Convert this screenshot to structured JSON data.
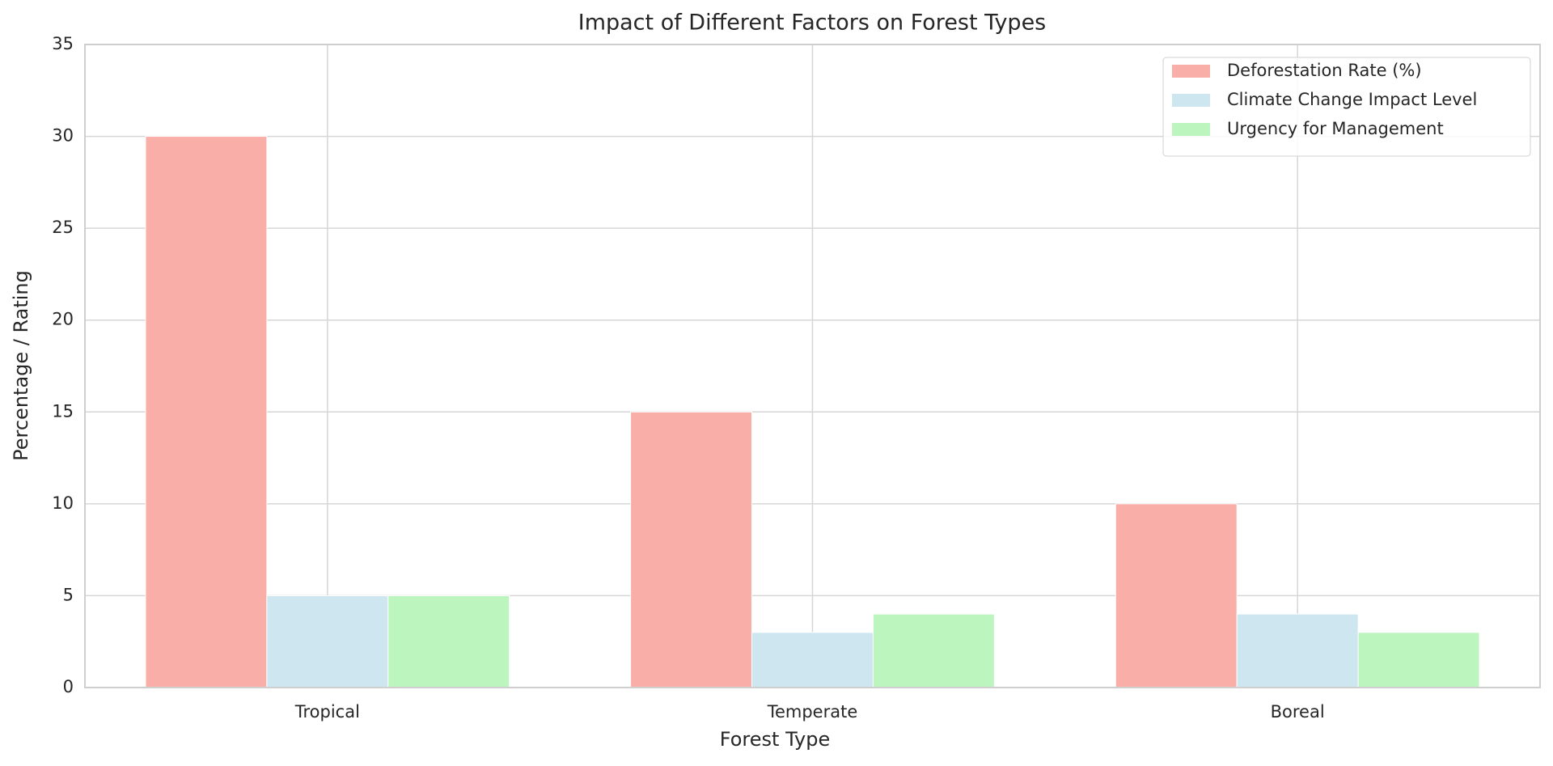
{
  "chart_data": {
    "type": "bar",
    "title": "Impact of Different Factors on Forest Types",
    "x_label": "Forest Type",
    "y_label": "Percentage / Rating",
    "categories": [
      "Tropical",
      "Temperate",
      "Boreal"
    ],
    "series": [
      {
        "name": "Deforestation Rate (%)",
        "color": "#f9aea8",
        "values": [
          30,
          15,
          10
        ]
      },
      {
        "name": "Climate Change Impact Level",
        "color": "#cde6ef",
        "values": [
          5,
          3,
          4
        ]
      },
      {
        "name": "Urgency for Management",
        "color": "#bdf5be",
        "values": [
          5,
          4,
          3
        ]
      }
    ],
    "ylim": [
      0,
      35
    ],
    "yticks": [
      0,
      5,
      10,
      15,
      20,
      25,
      30,
      35
    ],
    "grid": true,
    "legend": "upper right"
  }
}
